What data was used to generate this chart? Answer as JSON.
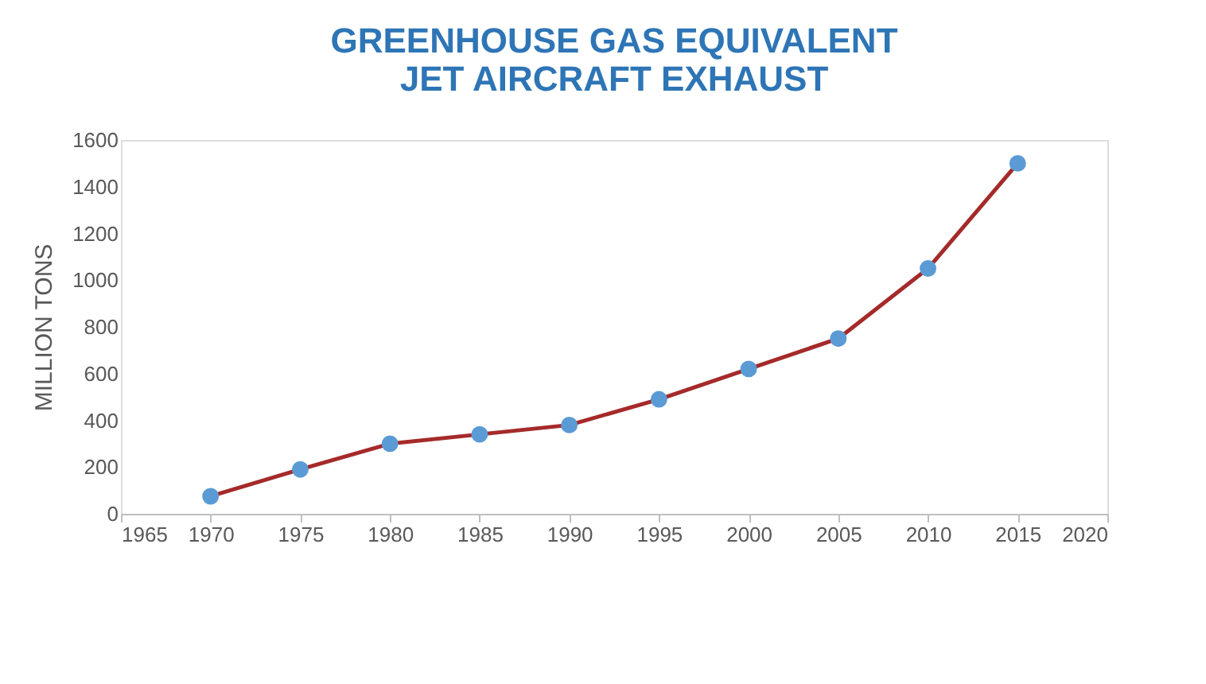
{
  "chart_data": {
    "type": "line",
    "title": "GREENHOUSE GAS EQUIVALENT\nJET AIRCRAFT EXHAUST",
    "ylabel": "MILLION TONS",
    "x": [
      1970,
      1975,
      1980,
      1985,
      1990,
      1995,
      2000,
      2005,
      2010,
      2015
    ],
    "series": [
      {
        "color": "#a52a2a",
        "values": [
          75,
          190,
          300,
          340,
          380,
          490,
          620,
          750,
          1050,
          1500
        ]
      },
      {
        "type": "scatter",
        "marker": "circle",
        "color": "#5b9bd5",
        "values": [
          75,
          190,
          300,
          340,
          380,
          490,
          620,
          750,
          1050,
          1500
        ]
      }
    ],
    "marker": "none",
    "line_style": "solid",
    "xlim": [
      1965,
      2020
    ],
    "xticks": [
      1965,
      1970,
      1975,
      1980,
      1985,
      1990,
      1995,
      2000,
      2005,
      2010,
      2015,
      2020
    ],
    "ylim": [
      0,
      1600
    ],
    "yticks": [
      0,
      200,
      400,
      600,
      800,
      1000,
      1200,
      1400,
      1600
    ],
    "grid": false
  }
}
